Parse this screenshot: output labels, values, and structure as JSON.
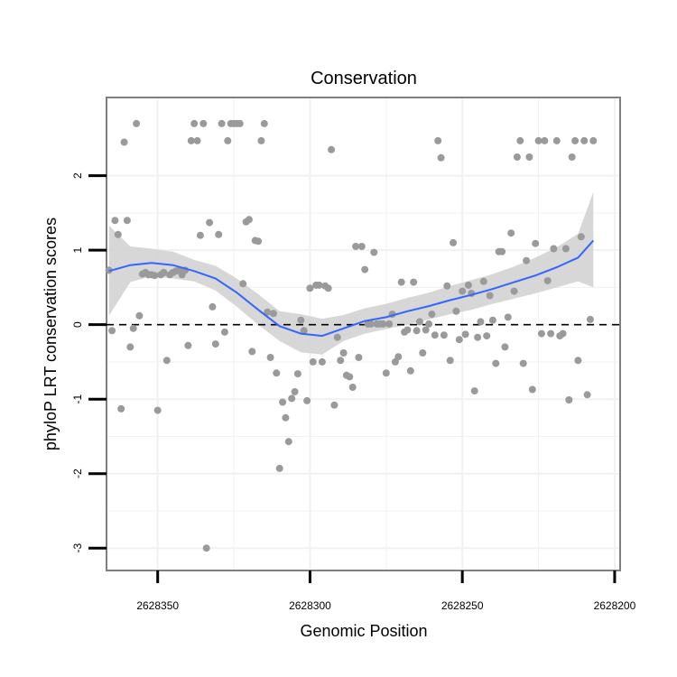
{
  "chart_data": {
    "type": "scatter",
    "title": "Conservation",
    "xlabel": "Genomic Position",
    "ylabel": "phyloP LRT conservation scores",
    "x_reversed": true,
    "xlim": [
      2628366.8,
      2628198.2
    ],
    "ylim": [
      -3.3,
      3.05
    ],
    "x_ticks": [
      {
        "value": 2628350,
        "label": "2628350"
      },
      {
        "value": 2628300,
        "label": "2628300"
      },
      {
        "value": 2628250,
        "label": "2628250"
      },
      {
        "value": 2628200,
        "label": "2628200"
      }
    ],
    "y_ticks": [
      {
        "value": 2,
        "label": "2"
      },
      {
        "value": 1,
        "label": "1"
      },
      {
        "value": 0,
        "label": "0"
      },
      {
        "value": -1,
        "label": "-1"
      },
      {
        "value": -2,
        "label": "-2"
      },
      {
        "value": -3,
        "label": "-3"
      }
    ],
    "grid": true,
    "colors": {
      "points": "#9a9a9a",
      "smooth": "#3366ff",
      "ribbon": "#d3d3d3",
      "panel_border": "#7f7f7f",
      "grid": "#f1f1f1",
      "reference_line": "#000000"
    },
    "reference_line": {
      "y": 0,
      "style": "dashed"
    },
    "points": [
      [
        2628366,
        0.73
      ],
      [
        2628365,
        -0.08
      ],
      [
        2628364,
        1.4
      ],
      [
        2628363,
        1.21
      ],
      [
        2628362,
        -1.13
      ],
      [
        2628361,
        2.45
      ],
      [
        2628360,
        1.4
      ],
      [
        2628359,
        -0.3
      ],
      [
        2628358,
        -0.05
      ],
      [
        2628357,
        2.7
      ],
      [
        2628356,
        0.12
      ],
      [
        2628355,
        0.68
      ],
      [
        2628354,
        0.7
      ],
      [
        2628353,
        0.67
      ],
      [
        2628352,
        0.67
      ],
      [
        2628351,
        0.66
      ],
      [
        2628350,
        -1.15
      ],
      [
        2628349,
        0.67
      ],
      [
        2628348,
        0.7
      ],
      [
        2628347,
        -0.48
      ],
      [
        2628346,
        0.67
      ],
      [
        2628345,
        0.7
      ],
      [
        2628344,
        0.72
      ],
      [
        2628343,
        0.73
      ],
      [
        2628342,
        0.67
      ],
      [
        2628341,
        0.73
      ],
      [
        2628340,
        -0.28
      ],
      [
        2628339,
        2.47
      ],
      [
        2628338,
        2.7
      ],
      [
        2628337,
        2.47
      ],
      [
        2628336,
        1.2
      ],
      [
        2628335,
        2.7
      ],
      [
        2628334,
        -3.0
      ],
      [
        2628333,
        1.37
      ],
      [
        2628332,
        0.24
      ],
      [
        2628331,
        -0.26
      ],
      [
        2628330,
        1.21
      ],
      [
        2628329,
        2.7
      ],
      [
        2628328,
        -0.1
      ],
      [
        2628327,
        2.47
      ],
      [
        2628326,
        2.7
      ],
      [
        2628325,
        2.7
      ],
      [
        2628324,
        2.7
      ],
      [
        2628323,
        2.7
      ],
      [
        2628322,
        0.55
      ],
      [
        2628321,
        1.38
      ],
      [
        2628320,
        1.41
      ],
      [
        2628319,
        -0.36
      ],
      [
        2628318,
        1.13
      ],
      [
        2628317,
        1.12
      ],
      [
        2628316,
        2.47
      ],
      [
        2628315,
        2.7
      ],
      [
        2628314,
        0.17
      ],
      [
        2628313,
        -0.44
      ],
      [
        2628312,
        0.15
      ],
      [
        2628311,
        -0.65
      ],
      [
        2628310,
        -1.93
      ],
      [
        2628309,
        -1.04
      ],
      [
        2628308,
        -1.25
      ],
      [
        2628307,
        -1.57
      ],
      [
        2628306,
        -0.99
      ],
      [
        2628305,
        -0.9
      ],
      [
        2628304,
        -0.66
      ],
      [
        2628303,
        0.06
      ],
      [
        2628302,
        -0.08
      ],
      [
        2628301,
        -1.02
      ],
      [
        2628300,
        0.49
      ],
      [
        2628299,
        -0.5
      ],
      [
        2628298,
        0.53
      ],
      [
        2628297,
        0.53
      ],
      [
        2628296,
        -0.5
      ],
      [
        2628295,
        0.52
      ],
      [
        2628294,
        0.49
      ],
      [
        2628293,
        2.35
      ],
      [
        2628292,
        -1.08
      ],
      [
        2628291,
        -0.17
      ],
      [
        2628290,
        -0.48
      ],
      [
        2628289,
        -0.38
      ],
      [
        2628288,
        -0.68
      ],
      [
        2628287,
        -0.7
      ],
      [
        2628286,
        -0.84
      ],
      [
        2628285,
        1.05
      ],
      [
        2628284,
        -0.44
      ],
      [
        2628283,
        1.05
      ],
      [
        2628282,
        0.74
      ],
      [
        2628281,
        0.01
      ],
      [
        2628280,
        0.01
      ],
      [
        2628279,
        0.97
      ],
      [
        2628278,
        0.01
      ],
      [
        2628277,
        0.01
      ],
      [
        2628276,
        0.01
      ],
      [
        2628275,
        -0.65
      ],
      [
        2628274,
        0.01
      ],
      [
        2628273,
        0.14
      ],
      [
        2628272,
        -0.5
      ],
      [
        2628271,
        -0.43
      ],
      [
        2628270,
        0.57
      ],
      [
        2628269,
        -0.1
      ],
      [
        2628268,
        -0.07
      ],
      [
        2628267,
        -0.62
      ],
      [
        2628266,
        0.57
      ],
      [
        2628265,
        -0.08
      ],
      [
        2628264,
        0.04
      ],
      [
        2628263,
        -0.38
      ],
      [
        2628262,
        -0.07
      ],
      [
        2628261,
        0.01
      ],
      [
        2628260,
        0.14
      ],
      [
        2628259,
        -0.14
      ],
      [
        2628258,
        2.47
      ],
      [
        2628257,
        2.24
      ],
      [
        2628256,
        -0.14
      ],
      [
        2628255,
        0.52
      ],
      [
        2628254,
        -0.48
      ],
      [
        2628253,
        1.1
      ],
      [
        2628252,
        0.18
      ],
      [
        2628251,
        -0.2
      ],
      [
        2628250,
        0.45
      ],
      [
        2628249,
        -0.13
      ],
      [
        2628248,
        0.53
      ],
      [
        2628247,
        0.42
      ],
      [
        2628246,
        -0.89
      ],
      [
        2628245,
        -0.17
      ],
      [
        2628244,
        0.04
      ],
      [
        2628243,
        0.58
      ],
      [
        2628242,
        -0.15
      ],
      [
        2628241,
        0.39
      ],
      [
        2628240,
        0.06
      ],
      [
        2628239,
        -0.52
      ],
      [
        2628238,
        0.98
      ],
      [
        2628237,
        0.98
      ],
      [
        2628236,
        -0.3
      ],
      [
        2628235,
        0.1
      ],
      [
        2628234,
        1.23
      ],
      [
        2628233,
        0.45
      ],
      [
        2628232,
        2.25
      ],
      [
        2628231,
        2.47
      ],
      [
        2628230,
        -0.52
      ],
      [
        2628229,
        0.86
      ],
      [
        2628228,
        2.25
      ],
      [
        2628227,
        -0.87
      ],
      [
        2628226,
        1.09
      ],
      [
        2628225,
        2.47
      ],
      [
        2628224,
        -0.12
      ],
      [
        2628223,
        2.47
      ],
      [
        2628222,
        0.59
      ],
      [
        2628221,
        -0.12
      ],
      [
        2628220,
        1.02
      ],
      [
        2628219,
        2.47
      ],
      [
        2628218,
        -0.15
      ],
      [
        2628217,
        -0.12
      ],
      [
        2628216,
        1.02
      ],
      [
        2628215,
        -1.01
      ],
      [
        2628214,
        2.25
      ],
      [
        2628213,
        2.47
      ],
      [
        2628212,
        -0.48
      ],
      [
        2628211,
        1.18
      ],
      [
        2628210,
        2.47
      ],
      [
        2628209,
        -0.94
      ],
      [
        2628208,
        0.07
      ],
      [
        2628207,
        2.47
      ]
    ],
    "smooth": [
      [
        2628366,
        0.72,
        0.12,
        1.33
      ],
      [
        2628359,
        0.8,
        0.57,
        1.05
      ],
      [
        2628352,
        0.83,
        0.65,
        1.02
      ],
      [
        2628345,
        0.8,
        0.62,
        0.98
      ],
      [
        2628338,
        0.72,
        0.58,
        0.87
      ],
      [
        2628331,
        0.62,
        0.46,
        0.79
      ],
      [
        2628324,
        0.43,
        0.24,
        0.62
      ],
      [
        2628317,
        0.2,
        0.0,
        0.41
      ],
      [
        2628310,
        -0.02,
        -0.22,
        0.18
      ],
      [
        2628303,
        -0.12,
        -0.37,
        0.14
      ],
      [
        2628296,
        -0.15,
        -0.4,
        0.08
      ],
      [
        2628289,
        -0.05,
        -0.22,
        0.13
      ],
      [
        2628282,
        0.05,
        -0.12,
        0.22
      ],
      [
        2628275,
        0.1,
        -0.06,
        0.28
      ],
      [
        2628268,
        0.18,
        0.0,
        0.36
      ],
      [
        2628261,
        0.25,
        0.07,
        0.43
      ],
      [
        2628254,
        0.33,
        0.14,
        0.52
      ],
      [
        2628247,
        0.4,
        0.2,
        0.6
      ],
      [
        2628240,
        0.48,
        0.28,
        0.68
      ],
      [
        2628233,
        0.57,
        0.35,
        0.78
      ],
      [
        2628226,
        0.66,
        0.42,
        0.9
      ],
      [
        2628219,
        0.77,
        0.5,
        1.04
      ],
      [
        2628212,
        0.9,
        0.58,
        1.22
      ],
      [
        2628207,
        1.13,
        0.5,
        1.78
      ]
    ]
  }
}
